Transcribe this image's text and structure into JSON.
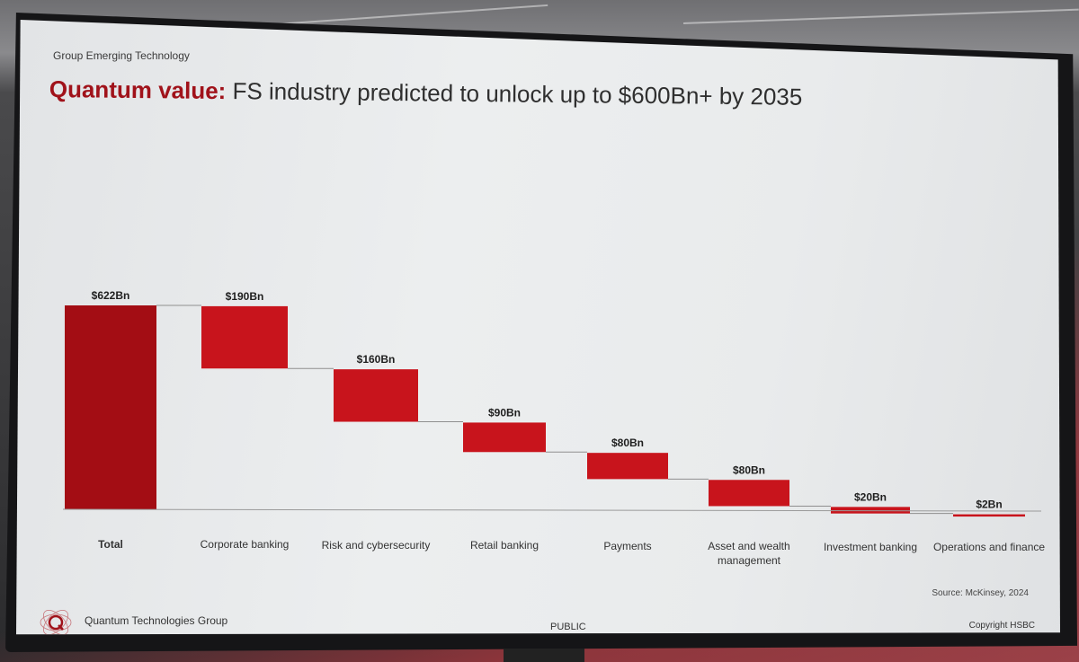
{
  "slide": {
    "group_label": "Group Emerging Technology",
    "title_accent": "Quantum value:",
    "title_rest": " FS industry predicted to unlock up to $600Bn+ by 2035",
    "source": "Source: McKinsey, 2024",
    "footer_org": "Quantum Technologies Group",
    "footer_classification": "PUBLIC",
    "footer_copyright": "Copyright HSBC"
  },
  "colors": {
    "total_bar": "#a30d14",
    "step_bar": "#c8141c",
    "connector": "#8f8f8f",
    "axis": "#9a9a9a"
  },
  "chart_data": {
    "type": "bar",
    "subtype": "waterfall",
    "categories": [
      "Total",
      "Corporate banking",
      "Risk and cybersecurity",
      "Retail banking",
      "Payments",
      "Asset and wealth management",
      "Investment banking",
      "Operations and finance"
    ],
    "values": [
      622,
      190,
      160,
      90,
      80,
      80,
      20,
      2
    ],
    "value_labels": [
      "$622Bn",
      "$190Bn",
      "$160Bn",
      "$90Bn",
      "$80Bn",
      "$80Bn",
      "$20Bn",
      "$2Bn"
    ],
    "unit": "Bn",
    "ylim": [
      0,
      622
    ],
    "grid": false,
    "legend": false
  }
}
